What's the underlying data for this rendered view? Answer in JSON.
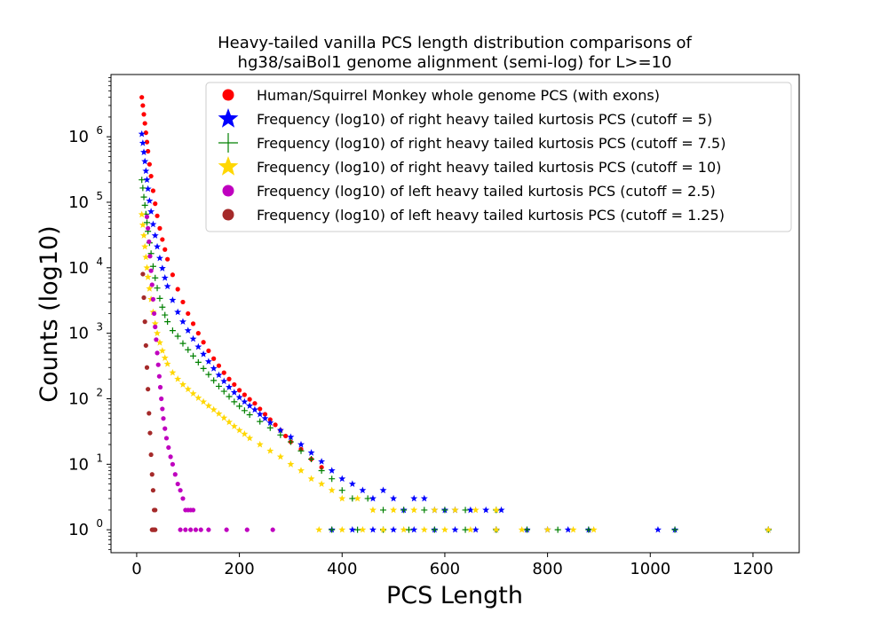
{
  "chart_data": {
    "type": "scatter",
    "title_lines": [
      "Heavy-tailed vanilla PCS length distribution comparisons of",
      "hg38/saiBol1 genome alignment (semi-log) for L>=10"
    ],
    "xlabel": "PCS Length",
    "ylabel": "Counts (log10)",
    "xlim": [
      -50,
      1290
    ],
    "ylim_log10": [
      -0.35,
      6.95
    ],
    "y_scale": "log10",
    "xticks": [
      0,
      200,
      400,
      600,
      800,
      1000,
      1200
    ],
    "xtick_labels": [
      "0",
      "200",
      "400",
      "600",
      "800",
      "1000",
      "1200"
    ],
    "ytick_exponents": [
      0,
      1,
      2,
      3,
      4,
      5,
      6
    ],
    "ytick_labels": [
      {
        "base": "10",
        "exp": "0"
      },
      {
        "base": "10",
        "exp": "1"
      },
      {
        "base": "10",
        "exp": "2"
      },
      {
        "base": "10",
        "exp": "3"
      },
      {
        "base": "10",
        "exp": "4"
      },
      {
        "base": "10",
        "exp": "5"
      },
      {
        "base": "10",
        "exp": "6"
      }
    ],
    "legend_position": "top-right",
    "series": [
      {
        "name": "Human/Squirrel Monkey whole genome PCS (with exons)",
        "marker": "circle",
        "color": "#ff0000",
        "points": [
          [
            10,
            4000000
          ],
          [
            12,
            3000000
          ],
          [
            14,
            2200000
          ],
          [
            16,
            1600000
          ],
          [
            18,
            1150000
          ],
          [
            20,
            830000
          ],
          [
            22,
            600000
          ],
          [
            25,
            380000
          ],
          [
            28,
            250000
          ],
          [
            32,
            150000
          ],
          [
            36,
            95000
          ],
          [
            40,
            62000
          ],
          [
            45,
            40000
          ],
          [
            50,
            27000
          ],
          [
            55,
            19000
          ],
          [
            60,
            13500
          ],
          [
            70,
            7800
          ],
          [
            80,
            4700
          ],
          [
            90,
            3000
          ],
          [
            100,
            2000
          ],
          [
            110,
            1400
          ],
          [
            120,
            1000
          ],
          [
            130,
            730
          ],
          [
            140,
            540
          ],
          [
            150,
            410
          ],
          [
            160,
            320
          ],
          [
            170,
            250
          ],
          [
            180,
            200
          ],
          [
            190,
            165
          ],
          [
            200,
            135
          ],
          [
            210,
            115
          ],
          [
            220,
            98
          ],
          [
            230,
            85
          ],
          [
            240,
            70
          ],
          [
            250,
            58
          ],
          [
            260,
            48
          ],
          [
            270,
            40
          ],
          [
            280,
            33
          ],
          [
            290,
            27
          ],
          [
            300,
            22
          ],
          [
            320,
            17
          ],
          [
            340,
            12
          ],
          [
            360,
            9
          ]
        ]
      },
      {
        "name": "Frequency (log10) of right heavy tailed kurtosis PCS (cutoff = 5)",
        "marker": "star",
        "color": "#0000ff",
        "points": [
          [
            10,
            1100000
          ],
          [
            12,
            800000
          ],
          [
            14,
            580000
          ],
          [
            16,
            420000
          ],
          [
            18,
            300000
          ],
          [
            20,
            220000
          ],
          [
            22,
            160000
          ],
          [
            25,
            105000
          ],
          [
            28,
            72000
          ],
          [
            32,
            46000
          ],
          [
            36,
            31000
          ],
          [
            40,
            21000
          ],
          [
            45,
            14000
          ],
          [
            50,
            9800
          ],
          [
            55,
            7000
          ],
          [
            60,
            5200
          ],
          [
            70,
            3200
          ],
          [
            80,
            2100
          ],
          [
            90,
            1500
          ],
          [
            100,
            1100
          ],
          [
            110,
            820
          ],
          [
            120,
            620
          ],
          [
            130,
            480
          ],
          [
            140,
            370
          ],
          [
            150,
            290
          ],
          [
            160,
            230
          ],
          [
            170,
            185
          ],
          [
            180,
            150
          ],
          [
            190,
            125
          ],
          [
            200,
            105
          ],
          [
            210,
            90
          ],
          [
            220,
            78
          ],
          [
            230,
            68
          ],
          [
            240,
            58
          ],
          [
            250,
            50
          ],
          [
            260,
            43
          ],
          [
            280,
            33
          ],
          [
            300,
            26
          ],
          [
            320,
            20
          ],
          [
            340,
            15
          ],
          [
            360,
            11
          ],
          [
            380,
            8
          ],
          [
            400,
            6
          ],
          [
            420,
            5
          ],
          [
            440,
            4
          ],
          [
            460,
            3
          ],
          [
            480,
            4
          ],
          [
            500,
            3
          ],
          [
            520,
            2
          ],
          [
            540,
            3
          ],
          [
            560,
            3
          ],
          [
            580,
            2
          ],
          [
            600,
            2
          ],
          [
            620,
            2
          ],
          [
            650,
            2
          ],
          [
            680,
            2
          ],
          [
            710,
            2
          ],
          [
            380,
            1
          ],
          [
            420,
            1
          ],
          [
            460,
            1
          ],
          [
            500,
            1
          ],
          [
            540,
            1
          ],
          [
            580,
            1
          ],
          [
            620,
            1
          ],
          [
            660,
            1
          ],
          [
            700,
            1
          ],
          [
            760,
            1
          ],
          [
            800,
            1
          ],
          [
            840,
            1
          ],
          [
            880,
            1
          ],
          [
            1015,
            1
          ],
          [
            1048,
            1
          ],
          [
            1230,
            1
          ]
        ]
      },
      {
        "name": "Frequency (log10) of right heavy tailed kurtosis PCS (cutoff = 7.5)",
        "marker": "plus",
        "color": "#008000",
        "points": [
          [
            10,
            220000
          ],
          [
            12,
            165000
          ],
          [
            14,
            120000
          ],
          [
            16,
            90000
          ],
          [
            18,
            66000
          ],
          [
            20,
            49000
          ],
          [
            22,
            36000
          ],
          [
            25,
            24000
          ],
          [
            28,
            16500
          ],
          [
            32,
            10500
          ],
          [
            36,
            7000
          ],
          [
            40,
            4900
          ],
          [
            45,
            3400
          ],
          [
            50,
            2500
          ],
          [
            55,
            1900
          ],
          [
            60,
            1500
          ],
          [
            70,
            1100
          ],
          [
            80,
            900
          ],
          [
            90,
            700
          ],
          [
            100,
            560
          ],
          [
            110,
            450
          ],
          [
            120,
            360
          ],
          [
            130,
            290
          ],
          [
            140,
            235
          ],
          [
            150,
            190
          ],
          [
            160,
            155
          ],
          [
            170,
            130
          ],
          [
            180,
            108
          ],
          [
            190,
            90
          ],
          [
            200,
            77
          ],
          [
            210,
            66
          ],
          [
            220,
            57
          ],
          [
            240,
            45
          ],
          [
            260,
            36
          ],
          [
            280,
            28
          ],
          [
            300,
            22
          ],
          [
            320,
            16
          ],
          [
            340,
            12
          ],
          [
            360,
            8
          ],
          [
            380,
            6
          ],
          [
            400,
            4
          ],
          [
            420,
            3
          ],
          [
            450,
            3
          ],
          [
            480,
            2
          ],
          [
            520,
            2
          ],
          [
            560,
            2
          ],
          [
            600,
            2
          ],
          [
            640,
            2
          ],
          [
            700,
            2
          ],
          [
            380,
            1
          ],
          [
            430,
            1
          ],
          [
            480,
            1
          ],
          [
            530,
            1
          ],
          [
            580,
            1
          ],
          [
            640,
            1
          ],
          [
            700,
            1
          ],
          [
            760,
            1
          ],
          [
            820,
            1
          ],
          [
            880,
            1
          ],
          [
            1048,
            1
          ],
          [
            1230,
            1
          ]
        ]
      },
      {
        "name": "Frequency (log10) of right heavy tailed kurtosis PCS (cutoff = 10)",
        "marker": "star",
        "color": "#ffd700",
        "points": [
          [
            10,
            65000
          ],
          [
            12,
            45000
          ],
          [
            14,
            31000
          ],
          [
            16,
            21000
          ],
          [
            18,
            14500
          ],
          [
            20,
            10000
          ],
          [
            22,
            7200
          ],
          [
            25,
            4800
          ],
          [
            28,
            3300
          ],
          [
            32,
            2100
          ],
          [
            36,
            1400
          ],
          [
            40,
            1000
          ],
          [
            45,
            720
          ],
          [
            50,
            540
          ],
          [
            55,
            420
          ],
          [
            60,
            340
          ],
          [
            70,
            250
          ],
          [
            80,
            200
          ],
          [
            90,
            165
          ],
          [
            100,
            140
          ],
          [
            110,
            120
          ],
          [
            120,
            103
          ],
          [
            130,
            90
          ],
          [
            140,
            78
          ],
          [
            150,
            68
          ],
          [
            160,
            59
          ],
          [
            170,
            51
          ],
          [
            180,
            44
          ],
          [
            190,
            38
          ],
          [
            200,
            33
          ],
          [
            210,
            29
          ],
          [
            220,
            25
          ],
          [
            240,
            20
          ],
          [
            260,
            16
          ],
          [
            280,
            13
          ],
          [
            300,
            10
          ],
          [
            320,
            8
          ],
          [
            340,
            6
          ],
          [
            360,
            5
          ],
          [
            380,
            4
          ],
          [
            400,
            3
          ],
          [
            430,
            3
          ],
          [
            460,
            2
          ],
          [
            500,
            2
          ],
          [
            540,
            2
          ],
          [
            580,
            2
          ],
          [
            620,
            2
          ],
          [
            660,
            2
          ],
          [
            700,
            2
          ],
          [
            355,
            1
          ],
          [
            400,
            1
          ],
          [
            440,
            1
          ],
          [
            480,
            1
          ],
          [
            520,
            1
          ],
          [
            560,
            1
          ],
          [
            600,
            1
          ],
          [
            650,
            1
          ],
          [
            700,
            1
          ],
          [
            750,
            1
          ],
          [
            800,
            1
          ],
          [
            850,
            1
          ],
          [
            890,
            1
          ],
          [
            1230,
            1
          ]
        ]
      },
      {
        "name": "Frequency (log10) of left heavy tailed kurtosis PCS (cutoff = 2.5)",
        "marker": "circle",
        "color": "#bf00bf",
        "points": [
          [
            20,
            60000
          ],
          [
            22,
            40000
          ],
          [
            24,
            25000
          ],
          [
            26,
            15000
          ],
          [
            28,
            9000
          ],
          [
            30,
            5500
          ],
          [
            32,
            3300
          ],
          [
            34,
            2000
          ],
          [
            36,
            1250
          ],
          [
            38,
            800
          ],
          [
            40,
            500
          ],
          [
            42,
            330
          ],
          [
            44,
            220
          ],
          [
            46,
            150
          ],
          [
            48,
            100
          ],
          [
            50,
            70
          ],
          [
            52,
            50
          ],
          [
            55,
            35
          ],
          [
            58,
            25
          ],
          [
            62,
            18
          ],
          [
            66,
            13
          ],
          [
            70,
            10
          ],
          [
            75,
            7
          ],
          [
            80,
            5
          ],
          [
            85,
            4
          ],
          [
            90,
            3
          ],
          [
            95,
            2
          ],
          [
            100,
            2
          ],
          [
            105,
            2
          ],
          [
            110,
            2
          ],
          [
            85,
            1
          ],
          [
            95,
            1
          ],
          [
            105,
            1
          ],
          [
            115,
            1
          ],
          [
            125,
            1
          ],
          [
            140,
            1
          ],
          [
            175,
            1
          ],
          [
            215,
            1
          ],
          [
            265,
            1
          ]
        ]
      },
      {
        "name": "Frequency (log10) of left heavy tailed kurtosis PCS (cutoff = 1.25)",
        "marker": "circle",
        "color": "#a52a2a",
        "points": [
          [
            12,
            8000
          ],
          [
            14,
            3500
          ],
          [
            16,
            1500
          ],
          [
            18,
            650
          ],
          [
            20,
            300
          ],
          [
            22,
            140
          ],
          [
            24,
            60
          ],
          [
            26,
            30
          ],
          [
            28,
            14
          ],
          [
            30,
            7
          ],
          [
            32,
            4
          ],
          [
            34,
            2
          ],
          [
            36,
            2
          ],
          [
            30,
            1
          ],
          [
            32,
            1
          ],
          [
            34,
            1
          ],
          [
            36,
            1
          ]
        ]
      }
    ]
  }
}
